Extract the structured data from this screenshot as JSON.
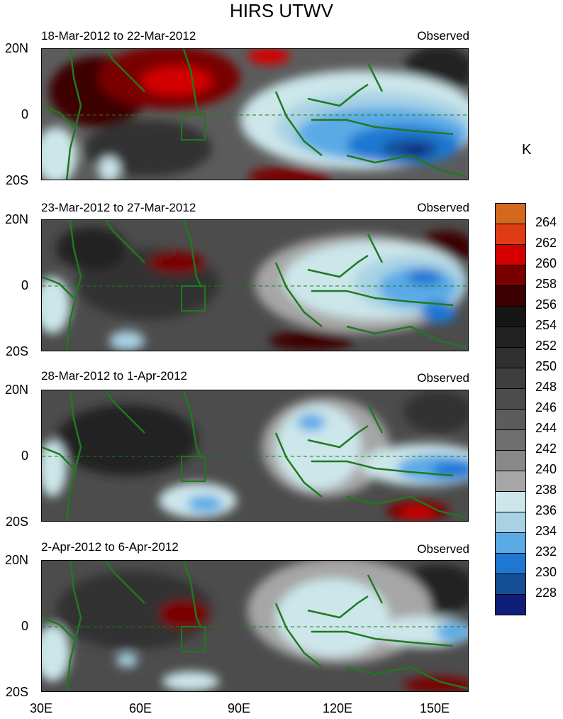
{
  "title": "HIRS UTWV",
  "panels": [
    {
      "date_range": "18-Mar-2012 to 22-Mar-2012",
      "label": "Observed"
    },
    {
      "date_range": "23-Mar-2012 to 27-Mar-2012",
      "label": "Observed"
    },
    {
      "date_range": "28-Mar-2012 to 1-Apr-2012",
      "label": "Observed"
    },
    {
      "date_range": "2-Apr-2012 to 6-Apr-2012",
      "label": "Observed"
    }
  ],
  "lat_ticks": [
    "20N",
    "0",
    "20S"
  ],
  "lon_ticks": [
    "30E",
    "60E",
    "90E",
    "120E",
    "150E"
  ],
  "colorbar": {
    "unit": "K",
    "labels": [
      "264",
      "262",
      "260",
      "258",
      "256",
      "254",
      "252",
      "250",
      "248",
      "246",
      "244",
      "242",
      "240",
      "238",
      "236",
      "234",
      "232",
      "230",
      "228"
    ],
    "colors": [
      "#d2691e",
      "#e03c14",
      "#d40000",
      "#7a0000",
      "#3c0000",
      "#161616",
      "#222222",
      "#303030",
      "#3e3e3e",
      "#4c4c4c",
      "#5c5c5c",
      "#6e6e6e",
      "#888888",
      "#a6a6a6",
      "#cce6ea",
      "#a8d2e4",
      "#5aaae6",
      "#1e78d2",
      "#144e94",
      "#0f1e78"
    ]
  },
  "colors": {
    "coast": "#1e7a1e"
  }
}
